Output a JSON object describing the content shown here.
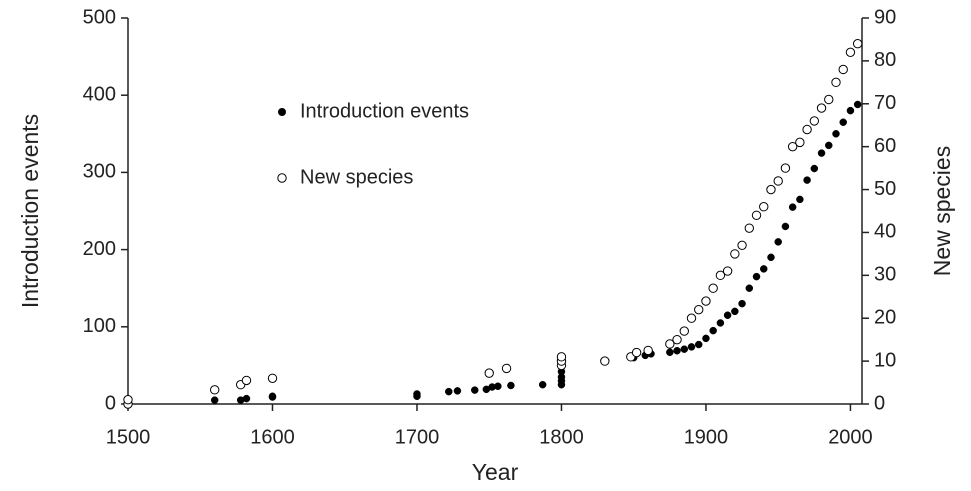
{
  "chart_data": {
    "type": "scatter",
    "xlabel": "Year",
    "ylabel": "Introduction events",
    "y2label": "New species",
    "xlim": [
      1500,
      2008
    ],
    "xticks": [
      1500,
      1600,
      1700,
      1800,
      1900,
      2000
    ],
    "ylim": [
      0,
      500
    ],
    "yticks": [
      0,
      100,
      200,
      300,
      400,
      500
    ],
    "y2lim": [
      0,
      90
    ],
    "y2ticks": [
      0,
      10,
      20,
      30,
      40,
      50,
      60,
      70,
      80,
      90
    ],
    "legend": "upper left",
    "series": [
      {
        "name": "Introduction events",
        "color": "#000000",
        "marker": "filled",
        "x": [
          1560,
          1578,
          1582,
          1600,
          1600,
          1700,
          1700,
          1722,
          1728,
          1740,
          1748,
          1752,
          1756,
          1765,
          1787,
          1800,
          1800,
          1800,
          1800,
          1800,
          1850,
          1858,
          1862,
          1875,
          1880,
          1885,
          1890,
          1895,
          1900,
          1905,
          1910,
          1915,
          1920,
          1925,
          1930,
          1935,
          1940,
          1945,
          1950,
          1955,
          1960,
          1965,
          1970,
          1975,
          1980,
          1985,
          1990,
          1995,
          2000,
          2005
        ],
        "values": [
          5,
          5,
          7,
          9,
          10,
          10,
          13,
          16,
          17,
          18,
          19,
          22,
          23,
          24,
          25,
          25,
          30,
          35,
          42,
          50,
          60,
          63,
          65,
          67,
          69,
          71,
          74,
          77,
          85,
          95,
          105,
          115,
          120,
          130,
          150,
          165,
          175,
          190,
          210,
          230,
          255,
          265,
          290,
          305,
          325,
          335,
          350,
          365,
          380,
          388
        ]
      },
      {
        "name": "New species",
        "color": "#000000",
        "marker": "open",
        "axis": "y2",
        "x": [
          1500,
          1500,
          1560,
          1578,
          1582,
          1600,
          1750,
          1762,
          1800,
          1800,
          1800,
          1830,
          1848,
          1852,
          1860,
          1875,
          1880,
          1885,
          1890,
          1895,
          1900,
          1905,
          1910,
          1915,
          1920,
          1925,
          1930,
          1935,
          1940,
          1945,
          1950,
          1955,
          1960,
          1965,
          1970,
          1975,
          1980,
          1985,
          1990,
          1995,
          2000,
          2005
        ],
        "values": [
          0,
          1,
          3.3,
          4.5,
          5.5,
          6,
          7.2,
          8.3,
          9,
          10,
          11,
          10,
          11,
          12,
          12.5,
          14,
          15,
          17,
          20,
          22,
          24,
          27,
          30,
          31,
          35,
          37,
          41,
          44,
          46,
          50,
          52,
          55,
          60,
          61,
          64,
          66,
          69,
          71,
          75,
          78,
          82,
          84
        ]
      }
    ]
  }
}
